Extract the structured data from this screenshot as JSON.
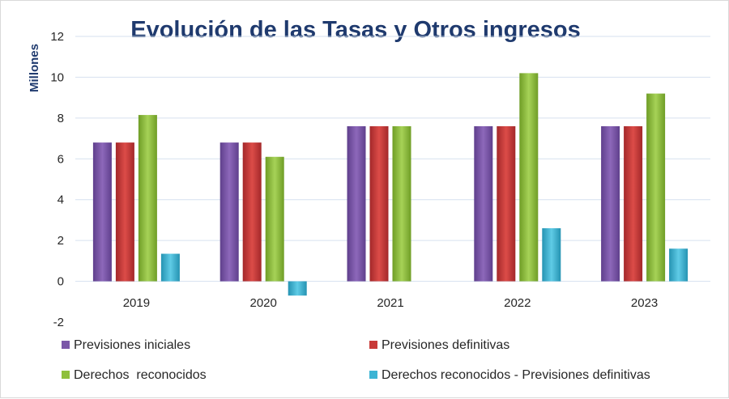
{
  "chart_data": {
    "type": "bar",
    "title": "Evolución de las Tasas y Otros ingresos",
    "ylabel": "Millones",
    "xlabel": "",
    "ylim": [
      -2,
      12
    ],
    "yticks": [
      -2,
      0,
      2,
      4,
      6,
      8,
      10,
      12
    ],
    "grid": true,
    "legend_position": "bottom",
    "categories": [
      "2019",
      "2020",
      "2021",
      "2022",
      "2023"
    ],
    "series": [
      {
        "name": "Previsiones iniciales",
        "color": "#7b57a8",
        "values": [
          6.8,
          6.8,
          7.6,
          7.6,
          7.6
        ]
      },
      {
        "name": "Previsiones definitivas",
        "color": "#c83a38",
        "values": [
          6.8,
          6.8,
          7.6,
          7.6,
          7.6
        ]
      },
      {
        "name": "Derechos  reconocidos",
        "color": "#8fc03c",
        "values": [
          8.15,
          6.1,
          7.6,
          10.2,
          9.2
        ]
      },
      {
        "name": "Derechos reconocidos - Previsiones definitivas",
        "color": "#3cb4d4",
        "values": [
          1.35,
          -0.7,
          0.0,
          2.6,
          1.6
        ]
      }
    ]
  }
}
